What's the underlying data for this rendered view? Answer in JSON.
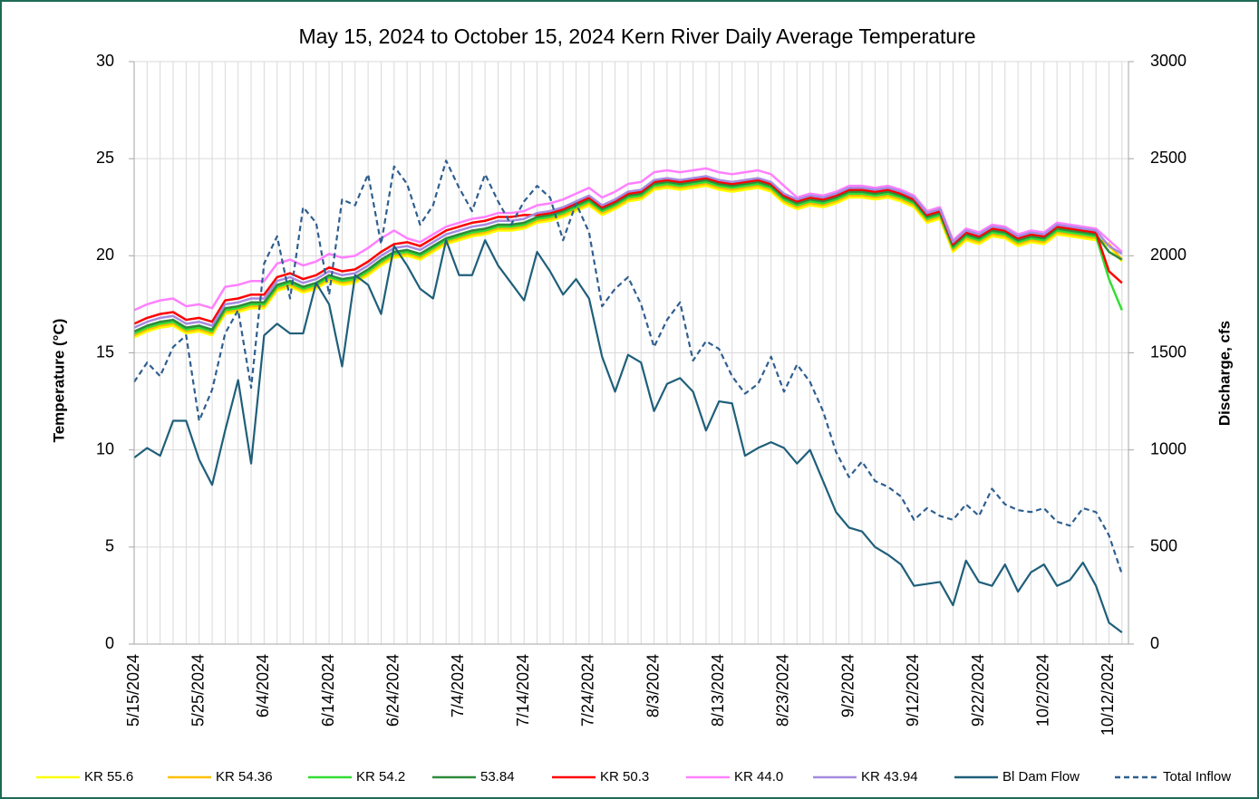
{
  "chart_data": {
    "type": "line",
    "title": "May 15, 2024 to October 15, 2024 Kern River Daily Average Temperature",
    "y_label": "Temperature (°C)",
    "y2_label": "Discharge, cfs",
    "categories": [
      "5/15/2024",
      null,
      null,
      null,
      null,
      "5/25/2024",
      null,
      null,
      null,
      null,
      "6/4/2024",
      null,
      null,
      null,
      null,
      "6/14/2024",
      null,
      null,
      null,
      null,
      "6/24/2024",
      null,
      null,
      null,
      null,
      "7/4/2024",
      null,
      null,
      null,
      null,
      "7/14/2024",
      null,
      null,
      null,
      null,
      "7/24/2024",
      null,
      null,
      null,
      null,
      "8/3/2024",
      null,
      null,
      null,
      null,
      "8/13/2024",
      null,
      null,
      null,
      null,
      "8/23/2024",
      null,
      null,
      null,
      null,
      "9/2/2024",
      null,
      null,
      null,
      null,
      "9/12/2024",
      null,
      null,
      null,
      null,
      "9/22/2024",
      null,
      null,
      null,
      null,
      "10/2/2024",
      null,
      null,
      null,
      null,
      "10/12/2024",
      null
    ],
    "ylim": [
      0,
      30
    ],
    "yticks": [
      0,
      5,
      10,
      15,
      20,
      25,
      30
    ],
    "y2lim": [
      0,
      3000
    ],
    "y2ticks": [
      0,
      500,
      1000,
      1500,
      2000,
      2500,
      3000
    ],
    "grid": true,
    "legend": "bottom",
    "series": [
      {
        "name": "KR 55.6",
        "color": "#ffff00",
        "values": [
          15.8,
          16.1,
          16.3,
          16.4,
          16.0,
          16.1,
          15.9,
          17.0,
          17.1,
          17.3,
          17.3,
          18.2,
          18.4,
          18.1,
          18.3,
          18.7,
          18.5,
          18.6,
          19.0,
          19.5,
          19.9,
          20.0,
          19.8,
          20.2,
          20.6,
          20.8,
          21.0,
          21.1,
          21.3,
          21.3,
          21.4,
          21.7,
          21.8,
          22.0,
          22.3,
          22.6,
          22.1,
          22.4,
          22.8,
          22.9,
          23.4,
          23.5,
          23.4,
          23.5,
          23.6,
          23.4,
          23.3,
          23.4,
          23.5,
          23.3,
          22.7,
          22.4,
          22.6,
          22.5,
          22.7,
          23.0,
          23.0,
          22.9,
          23.0,
          22.8,
          22.5,
          21.7,
          21.9,
          20.2,
          20.8,
          20.6,
          21.0,
          20.9,
          20.5,
          20.7,
          20.6,
          21.1,
          21.0,
          20.9,
          20.8,
          20.5,
          19.7
        ]
      },
      {
        "name": "KR 54.36",
        "color": "#ffc000",
        "values": [
          15.9,
          16.2,
          16.4,
          16.5,
          16.1,
          16.2,
          16.0,
          17.1,
          17.2,
          17.4,
          17.4,
          18.3,
          18.5,
          18.2,
          18.4,
          18.8,
          18.6,
          18.7,
          19.1,
          19.6,
          20.0,
          20.1,
          19.9,
          20.3,
          20.7,
          20.9,
          21.1,
          21.2,
          21.4,
          21.4,
          21.5,
          21.8,
          21.9,
          22.1,
          22.4,
          22.7,
          22.2,
          22.5,
          22.9,
          23.0,
          23.5,
          23.6,
          23.5,
          23.6,
          23.7,
          23.5,
          23.4,
          23.5,
          23.6,
          23.4,
          22.8,
          22.5,
          22.7,
          22.6,
          22.8,
          23.1,
          23.1,
          23.0,
          23.1,
          22.9,
          22.6,
          21.8,
          22.0,
          20.3,
          20.9,
          20.7,
          21.1,
          21.0,
          20.6,
          20.8,
          20.7,
          21.2,
          21.1,
          21.0,
          20.9,
          20.6,
          19.8
        ]
      },
      {
        "name": "KR 54.2",
        "color": "#33dd33",
        "values": [
          16.0,
          16.3,
          16.5,
          16.6,
          16.2,
          16.3,
          16.1,
          17.2,
          17.3,
          17.5,
          17.5,
          18.4,
          18.6,
          18.3,
          18.5,
          18.9,
          18.7,
          18.8,
          19.2,
          19.7,
          20.1,
          20.2,
          20.0,
          20.4,
          20.8,
          21.0,
          21.2,
          21.3,
          21.5,
          21.5,
          21.6,
          21.9,
          22.0,
          22.2,
          22.5,
          22.8,
          22.3,
          22.6,
          23.0,
          23.1,
          23.6,
          23.7,
          23.6,
          23.7,
          23.8,
          23.6,
          23.5,
          23.6,
          23.7,
          23.5,
          22.9,
          22.6,
          22.8,
          22.7,
          22.9,
          23.2,
          23.2,
          23.1,
          23.2,
          23.0,
          22.7,
          21.9,
          22.1,
          20.4,
          21.0,
          20.8,
          21.2,
          21.1,
          20.7,
          20.9,
          20.8,
          21.3,
          21.2,
          21.1,
          21.0,
          18.8,
          17.2
        ]
      },
      {
        "name": "53.84",
        "color": "#2e8b3a",
        "values": [
          16.1,
          16.4,
          16.6,
          16.7,
          16.3,
          16.4,
          16.2,
          17.3,
          17.4,
          17.6,
          17.6,
          18.5,
          18.7,
          18.4,
          18.6,
          19.0,
          18.8,
          18.9,
          19.3,
          19.8,
          20.2,
          20.3,
          20.1,
          20.5,
          20.9,
          21.1,
          21.3,
          21.4,
          21.6,
          21.6,
          21.7,
          22.0,
          22.1,
          22.3,
          22.6,
          22.9,
          22.4,
          22.7,
          23.1,
          23.2,
          23.7,
          23.8,
          23.7,
          23.8,
          23.9,
          23.7,
          23.6,
          23.7,
          23.8,
          23.6,
          23.0,
          22.7,
          22.9,
          22.8,
          23.0,
          23.3,
          23.3,
          23.2,
          23.3,
          23.1,
          22.8,
          22.0,
          22.2,
          20.5,
          21.1,
          20.9,
          21.3,
          21.2,
          20.8,
          21.0,
          20.9,
          21.4,
          21.3,
          21.2,
          21.1,
          20.2,
          19.8
        ]
      },
      {
        "name": "KR 50.3",
        "color": "#ff0000",
        "values": [
          16.5,
          16.8,
          17.0,
          17.1,
          16.7,
          16.8,
          16.6,
          17.7,
          17.8,
          18.0,
          18.0,
          18.9,
          19.1,
          18.8,
          19.0,
          19.4,
          19.2,
          19.3,
          19.7,
          20.2,
          20.6,
          20.7,
          20.5,
          20.9,
          21.3,
          21.5,
          21.7,
          21.8,
          22.0,
          22.0,
          22.1,
          22.1,
          22.2,
          22.4,
          22.7,
          23.0,
          22.5,
          22.8,
          23.2,
          23.3,
          23.8,
          23.9,
          23.8,
          23.9,
          24.0,
          23.8,
          23.7,
          23.8,
          23.9,
          23.7,
          23.1,
          22.8,
          23.0,
          22.9,
          23.1,
          23.4,
          23.4,
          23.3,
          23.4,
          23.2,
          22.9,
          22.1,
          22.3,
          20.6,
          21.2,
          21.0,
          21.4,
          21.3,
          20.9,
          21.1,
          21.0,
          21.5,
          21.4,
          21.3,
          21.2,
          19.2,
          18.6
        ]
      },
      {
        "name": "KR 44.0",
        "color": "#ff80ff",
        "values": [
          17.2,
          17.5,
          17.7,
          17.8,
          17.4,
          17.5,
          17.3,
          18.4,
          18.5,
          18.7,
          18.7,
          19.6,
          19.8,
          19.5,
          19.7,
          20.1,
          19.9,
          20.0,
          20.4,
          20.9,
          21.3,
          20.9,
          20.7,
          21.1,
          21.5,
          21.7,
          21.9,
          22.0,
          22.2,
          22.2,
          22.3,
          22.6,
          22.7,
          22.9,
          23.2,
          23.5,
          23.0,
          23.3,
          23.7,
          23.8,
          24.3,
          24.4,
          24.3,
          24.4,
          24.5,
          24.3,
          24.2,
          24.3,
          24.4,
          24.2,
          23.6,
          23.0,
          23.2,
          23.1,
          23.3,
          23.6,
          23.6,
          23.5,
          23.6,
          23.4,
          23.1,
          22.3,
          22.5,
          20.8,
          21.4,
          21.2,
          21.6,
          21.5,
          21.1,
          21.3,
          21.2,
          21.7,
          21.6,
          21.5,
          21.4,
          20.8,
          20.2
        ]
      },
      {
        "name": "KR 43.94",
        "color": "#a58be0",
        "values": [
          16.3,
          16.6,
          16.8,
          16.9,
          16.5,
          16.6,
          16.4,
          17.5,
          17.6,
          17.8,
          17.8,
          18.7,
          18.9,
          18.6,
          18.8,
          19.2,
          19.0,
          19.1,
          19.5,
          20.0,
          20.4,
          20.5,
          20.3,
          20.7,
          21.1,
          21.3,
          21.5,
          21.6,
          21.8,
          21.8,
          21.9,
          22.2,
          22.3,
          22.5,
          22.8,
          23.1,
          22.6,
          22.9,
          23.3,
          23.4,
          23.9,
          24.0,
          23.9,
          24.0,
          24.1,
          23.9,
          23.8,
          23.9,
          24.0,
          23.8,
          23.2,
          22.9,
          23.1,
          23.0,
          23.2,
          23.5,
          23.5,
          23.4,
          23.5,
          23.3,
          23.0,
          22.2,
          22.4,
          20.7,
          21.3,
          21.1,
          21.5,
          21.4,
          21.0,
          21.2,
          21.1,
          21.6,
          21.5,
          21.4,
          21.3,
          20.5,
          20.1
        ]
      },
      {
        "name": "Bl Dam Flow",
        "color": "#1f5f7a",
        "axis": "y2",
        "values": [
          960,
          1010,
          970,
          1150,
          1150,
          950,
          820,
          1100,
          1360,
          930,
          1590,
          1650,
          1600,
          1600,
          1860,
          1750,
          1430,
          1900,
          1850,
          1700,
          2050,
          1950,
          1830,
          1780,
          2080,
          1900,
          1900,
          2080,
          1950,
          1860,
          1770,
          2020,
          1920,
          1800,
          1880,
          1780,
          1480,
          1300,
          1490,
          1450,
          1200,
          1340,
          1370,
          1300,
          1100,
          1250,
          1240,
          970,
          1010,
          1040,
          1010,
          930,
          1000,
          840,
          680,
          600,
          580,
          500,
          460,
          410,
          300,
          310,
          320,
          200,
          430,
          320,
          300,
          410,
          270,
          370,
          410,
          300,
          330,
          420,
          300,
          110,
          60
        ]
      },
      {
        "name": "Total Inflow",
        "color": "#2f5f8f",
        "axis": "y2",
        "dashed": true,
        "values": [
          1350,
          1450,
          1380,
          1530,
          1590,
          1150,
          1310,
          1600,
          1720,
          1320,
          1960,
          2100,
          1780,
          2250,
          2170,
          1800,
          2290,
          2260,
          2420,
          2060,
          2460,
          2370,
          2160,
          2260,
          2490,
          2350,
          2230,
          2420,
          2280,
          2160,
          2280,
          2360,
          2300,
          2080,
          2270,
          2120,
          1740,
          1830,
          1890,
          1750,
          1530,
          1670,
          1760,
          1460,
          1560,
          1520,
          1380,
          1290,
          1340,
          1480,
          1300,
          1440,
          1350,
          1200,
          990,
          860,
          940,
          840,
          810,
          760,
          640,
          700,
          660,
          640,
          720,
          660,
          800,
          720,
          690,
          680,
          700,
          630,
          610,
          700,
          680,
          560,
          360
        ]
      }
    ]
  }
}
